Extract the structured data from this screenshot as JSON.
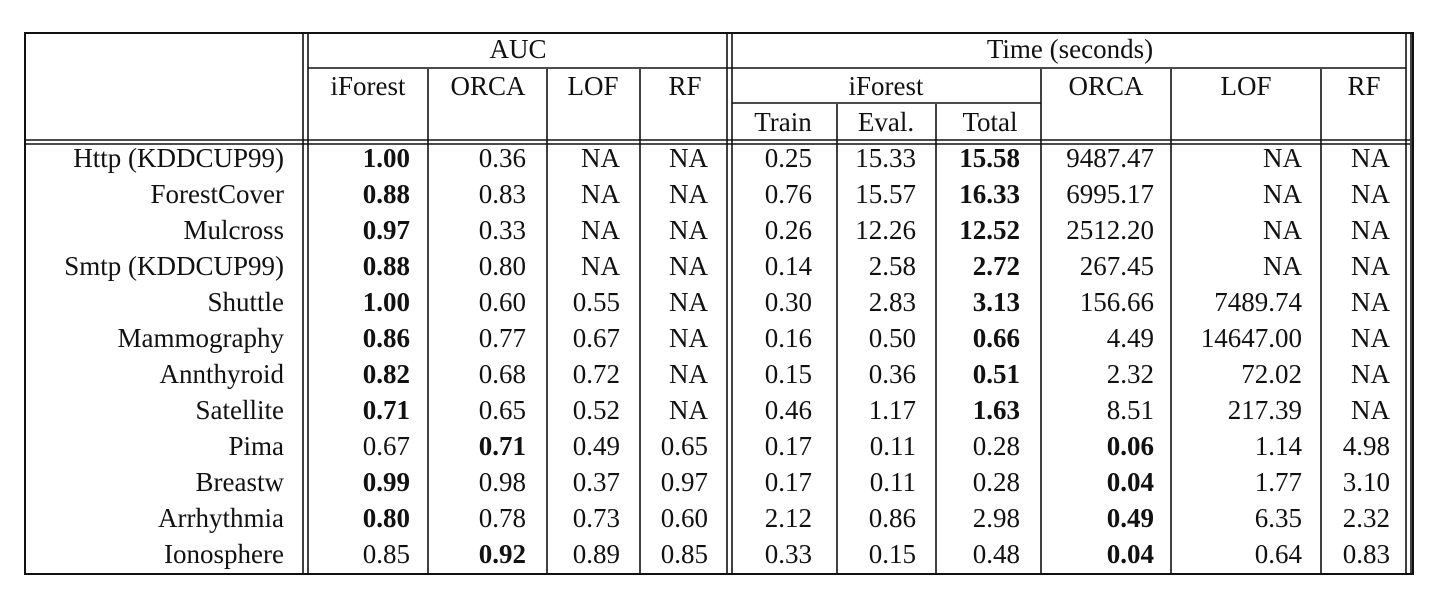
{
  "header": {
    "auc": "AUC",
    "time": "Time (seconds)",
    "auc_cols": [
      "iForest",
      "ORCA",
      "LOF",
      "RF"
    ],
    "time_iforest": "iForest",
    "time_sub": [
      "Train",
      "Eval.",
      "Total"
    ],
    "time_cols": [
      "ORCA",
      "LOF",
      "RF"
    ]
  },
  "rows": [
    {
      "name": "Http (KDDCUP99)",
      "auc": [
        "1.00",
        "0.36",
        "NA",
        "NA"
      ],
      "time": [
        "0.25",
        "15.33",
        "15.58",
        "9487.47",
        "NA",
        "NA"
      ],
      "bold_auc": 0,
      "bold_time": 2
    },
    {
      "name": "ForestCover",
      "auc": [
        "0.88",
        "0.83",
        "NA",
        "NA"
      ],
      "time": [
        "0.76",
        "15.57",
        "16.33",
        "6995.17",
        "NA",
        "NA"
      ],
      "bold_auc": 0,
      "bold_time": 2
    },
    {
      "name": "Mulcross",
      "auc": [
        "0.97",
        "0.33",
        "NA",
        "NA"
      ],
      "time": [
        "0.26",
        "12.26",
        "12.52",
        "2512.20",
        "NA",
        "NA"
      ],
      "bold_auc": 0,
      "bold_time": 2
    },
    {
      "name": "Smtp (KDDCUP99)",
      "auc": [
        "0.88",
        "0.80",
        "NA",
        "NA"
      ],
      "time": [
        "0.14",
        "2.58",
        "2.72",
        "267.45",
        "NA",
        "NA"
      ],
      "bold_auc": 0,
      "bold_time": 2
    },
    {
      "name": "Shuttle",
      "auc": [
        "1.00",
        "0.60",
        "0.55",
        "NA"
      ],
      "time": [
        "0.30",
        "2.83",
        "3.13",
        "156.66",
        "7489.74",
        "NA"
      ],
      "bold_auc": 0,
      "bold_time": 2
    },
    {
      "name": "Mammography",
      "auc": [
        "0.86",
        "0.77",
        "0.67",
        "NA"
      ],
      "time": [
        "0.16",
        "0.50",
        "0.66",
        "4.49",
        "14647.00",
        "NA"
      ],
      "bold_auc": 0,
      "bold_time": 2
    },
    {
      "name": "Annthyroid",
      "auc": [
        "0.82",
        "0.68",
        "0.72",
        "NA"
      ],
      "time": [
        "0.15",
        "0.36",
        "0.51",
        "2.32",
        "72.02",
        "NA"
      ],
      "bold_auc": 0,
      "bold_time": 2
    },
    {
      "name": "Satellite",
      "auc": [
        "0.71",
        "0.65",
        "0.52",
        "NA"
      ],
      "time": [
        "0.46",
        "1.17",
        "1.63",
        "8.51",
        "217.39",
        "NA"
      ],
      "bold_auc": 0,
      "bold_time": 2
    },
    {
      "name": "Pima",
      "auc": [
        "0.67",
        "0.71",
        "0.49",
        "0.65"
      ],
      "time": [
        "0.17",
        "0.11",
        "0.28",
        "0.06",
        "1.14",
        "4.98"
      ],
      "bold_auc": 1,
      "bold_time": 3
    },
    {
      "name": "Breastw",
      "auc": [
        "0.99",
        "0.98",
        "0.37",
        "0.97"
      ],
      "time": [
        "0.17",
        "0.11",
        "0.28",
        "0.04",
        "1.77",
        "3.10"
      ],
      "bold_auc": 0,
      "bold_time": 3
    },
    {
      "name": "Arrhythmia",
      "auc": [
        "0.80",
        "0.78",
        "0.73",
        "0.60"
      ],
      "time": [
        "2.12",
        "0.86",
        "2.98",
        "0.49",
        "6.35",
        "2.32"
      ],
      "bold_auc": 0,
      "bold_time": 3
    },
    {
      "name": "Ionosphere",
      "auc": [
        "0.85",
        "0.92",
        "0.89",
        "0.85"
      ],
      "time": [
        "0.33",
        "0.15",
        "0.48",
        "0.04",
        "0.64",
        "0.83"
      ],
      "bold_auc": 1,
      "bold_time": 3
    }
  ]
}
